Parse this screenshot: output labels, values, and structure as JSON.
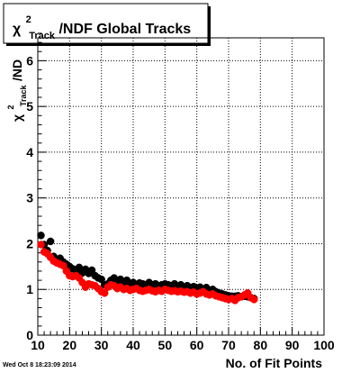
{
  "chart_data": {
    "type": "scatter",
    "title": {
      "symbol": "χ",
      "superscript": "2",
      "subscript": "Track",
      "rest": "/NDF  Global Tracks"
    },
    "ylabel": {
      "symbol": "χ",
      "superscript": "2",
      "subscript": "Track",
      "rest": "/ND"
    },
    "xlabel": "No. of Fit Points",
    "xlim": [
      10,
      100
    ],
    "ylim": [
      0,
      6.5
    ],
    "xticks": [
      "10",
      "20",
      "30",
      "40",
      "50",
      "60",
      "70",
      "80",
      "90",
      "100"
    ],
    "yticks": [
      "0",
      "1",
      "2",
      "3",
      "4",
      "5",
      "6"
    ],
    "grid": true,
    "timestamp": "Wed Oct  8 18:23:09 2014",
    "series": [
      {
        "color": "#000000",
        "x": [
          11,
          12,
          13,
          14,
          15,
          16,
          17,
          18,
          19,
          20,
          21,
          22,
          23,
          24,
          25,
          26,
          27,
          28,
          29,
          30,
          31,
          32,
          33,
          34,
          35,
          36,
          37,
          38,
          39,
          40,
          41,
          42,
          43,
          44,
          45,
          46,
          47,
          48,
          49,
          50,
          51,
          52,
          53,
          54,
          55,
          56,
          57,
          58,
          59,
          60,
          61,
          62,
          63,
          64,
          65,
          66,
          67,
          68,
          69,
          70,
          71,
          72,
          73,
          74,
          75,
          76,
          77,
          78
        ],
        "y": [
          2.18,
          1.98,
          1.85,
          2.05,
          1.72,
          1.65,
          1.68,
          1.6,
          1.55,
          1.5,
          1.45,
          1.42,
          1.48,
          1.36,
          1.44,
          1.35,
          1.42,
          1.3,
          1.25,
          1.22,
          1.1,
          1.12,
          1.2,
          1.25,
          1.18,
          1.22,
          1.15,
          1.2,
          1.12,
          1.15,
          1.1,
          1.14,
          1.12,
          1.1,
          1.15,
          1.1,
          1.12,
          1.08,
          1.1,
          1.12,
          1.1,
          1.08,
          1.12,
          1.06,
          1.1,
          1.05,
          1.08,
          1.04,
          1.06,
          1.02,
          1.05,
          1.0,
          1.04,
          0.98,
          1.0,
          0.95,
          0.92,
          0.9,
          0.88,
          0.86,
          0.85,
          0.85,
          0.86,
          0.84,
          0.85,
          0.84,
          0.82,
          0.8
        ]
      },
      {
        "color": "#ff0000",
        "x": [
          11,
          12,
          13,
          14,
          15,
          16,
          17,
          18,
          19,
          20,
          21,
          22,
          23,
          24,
          25,
          26,
          27,
          28,
          29,
          30,
          31,
          32,
          33,
          34,
          35,
          36,
          37,
          38,
          39,
          40,
          41,
          42,
          43,
          44,
          45,
          46,
          47,
          48,
          49,
          50,
          51,
          52,
          53,
          54,
          55,
          56,
          57,
          58,
          59,
          60,
          61,
          62,
          63,
          64,
          65,
          66,
          67,
          68,
          69,
          70,
          71,
          72,
          73,
          74,
          75,
          76,
          77,
          78
        ],
        "y": [
          1.98,
          1.82,
          1.78,
          1.7,
          1.62,
          1.58,
          1.55,
          1.52,
          1.4,
          1.3,
          1.28,
          1.3,
          1.25,
          1.15,
          1.05,
          1.12,
          1.1,
          1.08,
          1.02,
          0.95,
          0.92,
          1.05,
          1.1,
          1.08,
          1.02,
          1.05,
          1.0,
          1.02,
          0.98,
          1.0,
          1.02,
          0.98,
          0.96,
          0.98,
          1.0,
          0.97,
          0.95,
          0.98,
          0.96,
          1.0,
          0.98,
          0.96,
          0.97,
          0.95,
          0.96,
          0.94,
          0.95,
          0.92,
          0.94,
          0.9,
          0.92,
          0.95,
          0.9,
          0.88,
          0.9,
          0.86,
          0.84,
          0.82,
          0.8,
          0.78,
          0.8,
          0.76,
          0.82,
          0.84,
          0.88,
          0.92,
          0.82,
          0.78
        ]
      }
    ]
  }
}
